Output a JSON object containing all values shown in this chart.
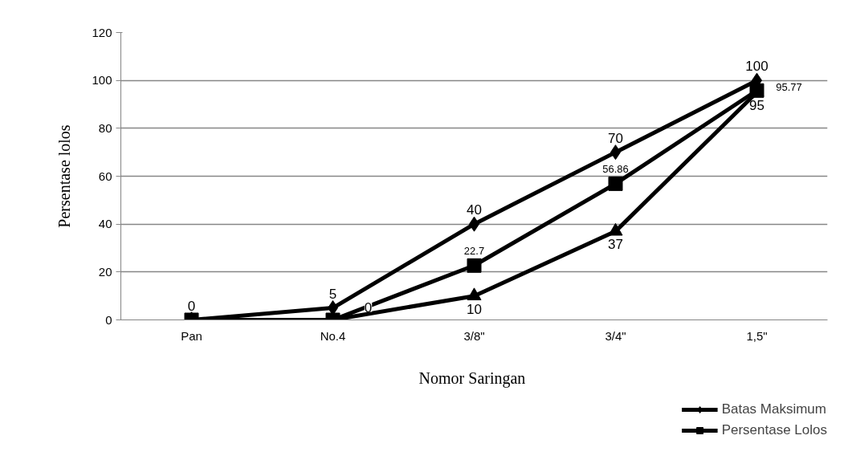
{
  "chart_data": {
    "type": "line",
    "xlabel": "Nomor  Saringan",
    "ylabel": "Persentase lolos",
    "categories": [
      "Pan",
      "No.4",
      "3/8\"",
      "3/4\"",
      "1,5\""
    ],
    "series": [
      {
        "name": "Batas Maksimum",
        "color": "#000000",
        "marker": "diamond",
        "values": [
          0,
          5,
          40,
          70,
          100
        ],
        "value_labels": [
          "0",
          "5",
          "40",
          "70",
          "100"
        ]
      },
      {
        "name": "Persentase Lolos",
        "color": "#000000",
        "marker": "square",
        "values": [
          0,
          0,
          22.7,
          56.86,
          95.77
        ],
        "value_labels": [
          null,
          null,
          "22.7",
          "56.86",
          "95.77"
        ]
      },
      {
        "color": "#000000",
        "marker": "triangle",
        "values": [
          0,
          0,
          10,
          37,
          95
        ],
        "value_labels": [
          null,
          "0",
          "10",
          "37",
          "95"
        ]
      }
    ],
    "ylim": [
      0,
      120
    ],
    "yticks": [
      0,
      20,
      40,
      60,
      80,
      100,
      120
    ],
    "grid": "y",
    "legend": "bottom right",
    "line_style": "solid"
  }
}
